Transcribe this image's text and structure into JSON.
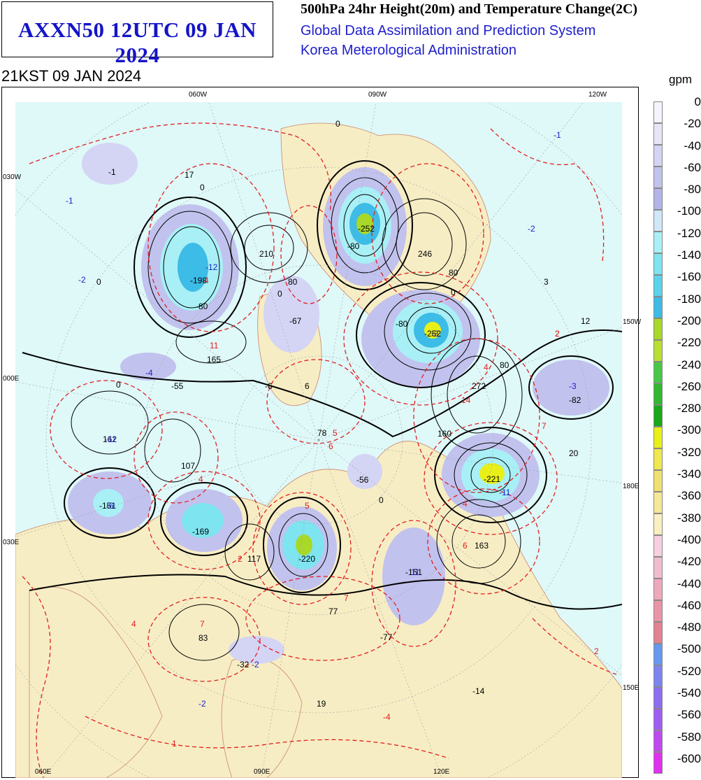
{
  "header": {
    "product_title": "AXXN50 12UTC 09 JAN 2024",
    "chart_title": "500hPa 24hr Height(20m) and Temperature Change(2C)",
    "system_name": "Global Data Assimilation and Prediction System",
    "agency": "Korea Meterological Administration",
    "valid_time": "21KST 09 JAN 2024"
  },
  "legend": {
    "unit": "gpm",
    "levels": [
      "0",
      "-20",
      "-40",
      "-60",
      "-80",
      "-100",
      "-120",
      "-140",
      "-160",
      "-180",
      "-200",
      "-220",
      "-240",
      "-260",
      "-280",
      "-300",
      "-320",
      "-340",
      "-360",
      "-380",
      "-400",
      "-420",
      "-440",
      "-460",
      "-480",
      "-500",
      "-520",
      "-540",
      "-560",
      "-580",
      "-600"
    ],
    "colors": [
      "#f4f4fc",
      "#e6e6f8",
      "#d4d4f4",
      "#c2c2ee",
      "#b4b4ea",
      "#cfe8f8",
      "#a8f0f6",
      "#7ee4f0",
      "#5ad4ec",
      "#3cbce6",
      "#a8d828",
      "#b8e030",
      "#48c848",
      "#30b830",
      "#18a818",
      "#e8f018",
      "#f0e850",
      "#f0e070",
      "#f4e898",
      "#f8f0c0",
      "#f6d0e0",
      "#f2bcd0",
      "#eea8bc",
      "#ea94a8",
      "#e68094",
      "#6898f0",
      "#7c84f0",
      "#8c6ef0",
      "#a05cf0",
      "#c048f0",
      "#e030f0"
    ]
  },
  "axes": {
    "top": [
      "060W",
      "090W",
      "120W"
    ],
    "left": [
      "030W",
      "000E",
      "030E"
    ],
    "right": [
      "150W",
      "180E",
      "150E"
    ],
    "bottom": [
      "060E",
      "090E",
      "120E"
    ]
  },
  "map": {
    "height_change_labels": [
      "-1",
      "17",
      "-198",
      "210",
      "-252",
      "246",
      "-80",
      "-80",
      "80",
      "80",
      "-67",
      "-80",
      "-252",
      "0",
      "165",
      "-55",
      "-6",
      "6",
      "272",
      "-82",
      "80",
      "162",
      "107",
      "78",
      "-56",
      "160",
      "-221",
      "20",
      "-151",
      "-169",
      "117",
      "-220",
      "-151",
      "163",
      "77",
      "-77",
      "83",
      "-32",
      "19",
      "-14",
      "0",
      "0",
      "0",
      "0",
      "0",
      "0"
    ],
    "temperature_change_labels": [
      "-1",
      "-1",
      "-2",
      "-12",
      "3",
      "-2",
      "12",
      "2",
      "11",
      "-4",
      "-3",
      "14",
      "7",
      "-11",
      "7",
      "2",
      "-6",
      "11",
      "6",
      "6",
      "-11",
      "7",
      "-3",
      "4",
      "-2",
      "2",
      "1",
      "-4",
      "2",
      "-2",
      "4",
      "4",
      "5",
      "5",
      "4",
      "4"
    ]
  }
}
